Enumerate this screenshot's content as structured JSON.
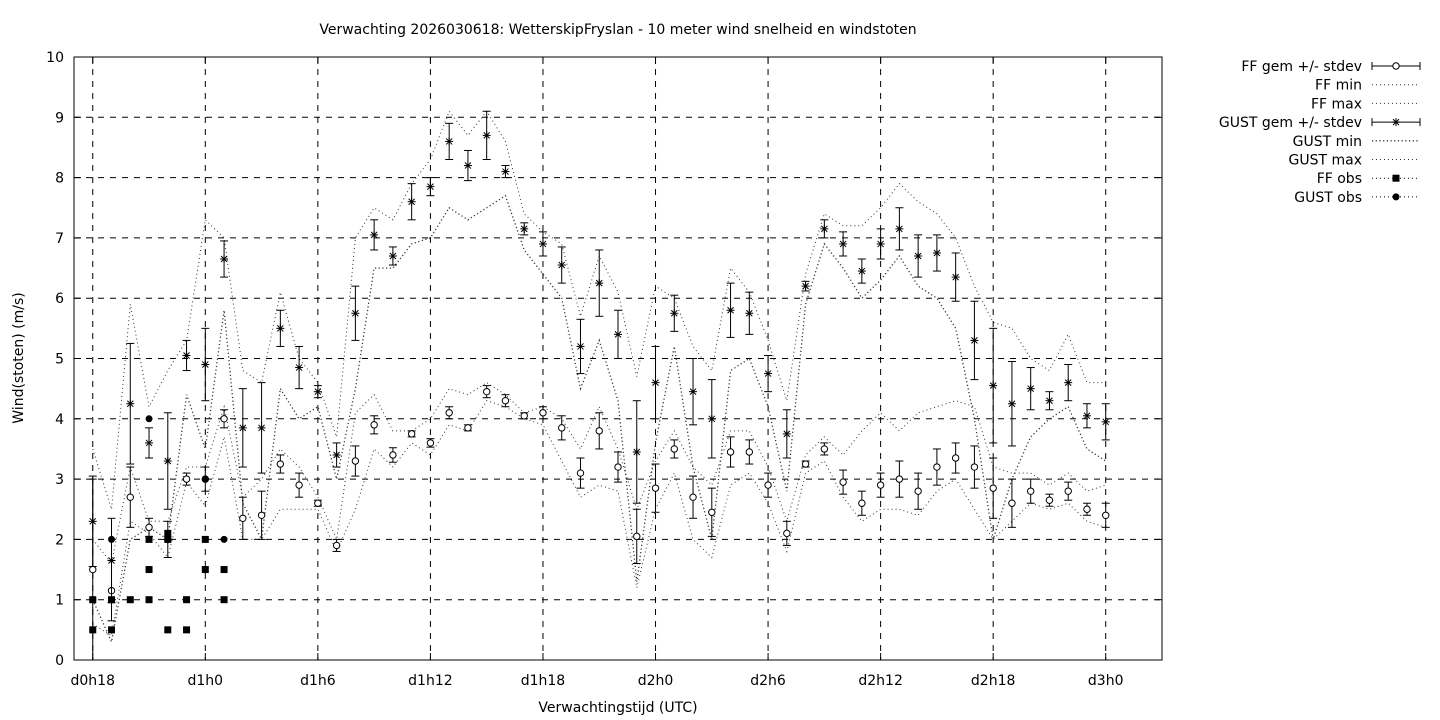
{
  "chart_data": {
    "type": "line",
    "title": "Verwachting 2026030618: WetterskipFryslan - 10 meter wind snelheid en windstoten",
    "xlabel": "Verwachtingstijd (UTC)",
    "ylabel": "Wind(stoten) (m/s)",
    "xlim": [
      -1,
      57
    ],
    "ylim": [
      0,
      10
    ],
    "yticks": [
      "0",
      "1",
      "2",
      "3",
      "4",
      "5",
      "6",
      "7",
      "8",
      "9",
      "10"
    ],
    "xticks": [
      {
        "x": 0,
        "label": "d0h18"
      },
      {
        "x": 6,
        "label": "d1h0"
      },
      {
        "x": 12,
        "label": "d1h6"
      },
      {
        "x": 18,
        "label": "d1h12"
      },
      {
        "x": 24,
        "label": "d1h18"
      },
      {
        "x": 30,
        "label": "d2h0"
      },
      {
        "x": 36,
        "label": "d2h6"
      },
      {
        "x": 42,
        "label": "d2h12"
      },
      {
        "x": 48,
        "label": "d2h18"
      },
      {
        "x": 54,
        "label": "d3h0"
      }
    ],
    "grid": true,
    "legend_position": "outside-right",
    "legend": [
      "FF gem +/- stdev",
      "FF min",
      "FF max",
      "GUST gem +/- stdev",
      "GUST min",
      "GUST max",
      "FF obs",
      "GUST obs"
    ],
    "x": [
      0,
      1,
      2,
      3,
      4,
      5,
      6,
      7,
      8,
      9,
      10,
      11,
      12,
      13,
      14,
      15,
      16,
      17,
      18,
      19,
      20,
      21,
      22,
      23,
      24,
      25,
      26,
      27,
      28,
      29,
      30,
      31,
      32,
      33,
      34,
      35,
      36,
      37,
      38,
      39,
      40,
      41,
      42,
      43,
      44,
      45,
      46,
      47,
      48,
      49,
      50,
      51,
      52,
      53,
      54
    ],
    "ff_mean": [
      1.5,
      1.15,
      2.7,
      2.2,
      2.0,
      3.0,
      3.0,
      4.0,
      2.35,
      2.4,
      3.25,
      2.9,
      2.6,
      1.9,
      3.3,
      3.9,
      3.4,
      3.75,
      3.6,
      4.1,
      3.85,
      4.45,
      4.3,
      4.05,
      4.1,
      3.85,
      3.1,
      3.8,
      3.2,
      2.05,
      2.85,
      3.5,
      2.7,
      2.45,
      3.45,
      3.45,
      2.9,
      2.1,
      3.25,
      3.5,
      2.95,
      2.6,
      2.9,
      3.0,
      2.8,
      3.2,
      3.35,
      3.2,
      2.85,
      2.6,
      2.8,
      2.65,
      2.8,
      2.5,
      2.4
    ],
    "ff_sd": [
      1.5,
      0.5,
      0.5,
      0.15,
      0.3,
      0.1,
      0.2,
      0.15,
      0.35,
      0.4,
      0.15,
      0.2,
      0.05,
      0.1,
      0.25,
      0.15,
      0.12,
      0.05,
      0.07,
      0.1,
      0.05,
      0.1,
      0.1,
      0.05,
      0.1,
      0.2,
      0.25,
      0.3,
      0.25,
      0.45,
      0.4,
      0.15,
      0.35,
      0.4,
      0.25,
      0.2,
      0.2,
      0.2,
      0.05,
      0.1,
      0.2,
      0.2,
      0.2,
      0.3,
      0.3,
      0.3,
      0.25,
      0.35,
      0.5,
      0.4,
      0.2,
      0.1,
      0.15,
      0.1,
      0.2
    ],
    "ff_min": [
      0.6,
      0.4,
      2.3,
      2.1,
      1.7,
      2.95,
      2.55,
      3.7,
      2.0,
      2.0,
      2.5,
      2.5,
      2.5,
      1.8,
      2.5,
      3.5,
      3.2,
      3.6,
      3.4,
      3.9,
      3.8,
      4.3,
      4.2,
      4.0,
      3.9,
      3.3,
      2.7,
      2.9,
      2.8,
      1.2,
      2.5,
      3.1,
      2.0,
      1.7,
      2.9,
      3.1,
      2.6,
      1.8,
      3.1,
      3.3,
      2.7,
      2.3,
      2.5,
      2.5,
      2.4,
      2.8,
      3.0,
      2.5,
      2.0,
      2.3,
      2.6,
      2.5,
      2.6,
      2.3,
      2.2
    ],
    "ff_max": [
      2.0,
      1.6,
      3.2,
      2.3,
      2.3,
      3.2,
      3.2,
      4.2,
      2.7,
      3.0,
      3.5,
      3.2,
      2.7,
      2.0,
      4.1,
      4.4,
      3.8,
      3.8,
      4.0,
      4.5,
      4.4,
      4.6,
      4.4,
      4.1,
      4.2,
      4.0,
      3.5,
      4.2,
      3.5,
      2.5,
      3.3,
      3.8,
      3.2,
      2.9,
      3.8,
      3.8,
      3.2,
      2.3,
      3.4,
      3.7,
      3.4,
      3.8,
      4.1,
      3.8,
      4.1,
      4.2,
      4.3,
      4.2,
      3.2,
      3.1,
      3.1,
      2.9,
      3.1,
      2.8,
      2.9
    ],
    "gust_mean": [
      2.3,
      1.65,
      4.25,
      3.6,
      3.3,
      5.05,
      4.9,
      6.65,
      3.85,
      3.85,
      5.5,
      4.85,
      4.45,
      3.4,
      5.75,
      7.05,
      6.7,
      7.6,
      7.85,
      8.6,
      8.2,
      8.7,
      8.1,
      7.15,
      6.9,
      6.55,
      5.2,
      6.25,
      5.4,
      3.45,
      4.6,
      5.75,
      4.45,
      4.0,
      5.8,
      5.75,
      4.75,
      3.75,
      6.2,
      7.15,
      6.9,
      6.45,
      6.9,
      7.15,
      6.7,
      6.75,
      6.35,
      5.3,
      4.55,
      4.25,
      4.5,
      4.3,
      4.6,
      4.05,
      3.95
    ],
    "gust_sd": [
      0.75,
      0.7,
      1.0,
      0.25,
      0.8,
      0.25,
      0.6,
      0.3,
      0.65,
      0.75,
      0.3,
      0.35,
      0.1,
      0.2,
      0.45,
      0.25,
      0.15,
      0.3,
      0.15,
      0.3,
      0.25,
      0.4,
      0.1,
      0.1,
      0.2,
      0.3,
      0.45,
      0.55,
      0.4,
      0.85,
      0.6,
      0.3,
      0.55,
      0.65,
      0.45,
      0.35,
      0.3,
      0.4,
      0.08,
      0.15,
      0.2,
      0.2,
      0.25,
      0.35,
      0.35,
      0.3,
      0.4,
      0.65,
      0.95,
      0.7,
      0.35,
      0.15,
      0.3,
      0.2,
      0.3
    ],
    "gust_min": [
      1.0,
      0.3,
      2.0,
      2.2,
      2.0,
      4.4,
      3.5,
      5.8,
      2.6,
      2.0,
      4.5,
      4.0,
      4.2,
      3.0,
      4.5,
      6.5,
      6.5,
      6.9,
      7.0,
      7.5,
      7.3,
      7.5,
      7.7,
      6.8,
      6.4,
      6.0,
      4.5,
      5.3,
      4.3,
      1.3,
      3.6,
      5.2,
      3.2,
      2.0,
      4.8,
      5.0,
      4.2,
      2.8,
      5.9,
      6.9,
      6.5,
      6.0,
      6.3,
      6.7,
      6.2,
      6.0,
      5.5,
      4.0,
      2.0,
      3.0,
      3.7,
      4.0,
      4.2,
      3.5,
      3.3
    ],
    "gust_max": [
      3.5,
      2.5,
      5.9,
      4.2,
      4.8,
      5.3,
      7.3,
      7.0,
      4.8,
      4.6,
      6.1,
      5.0,
      4.6,
      3.7,
      7.0,
      7.5,
      7.3,
      7.9,
      8.3,
      9.1,
      8.7,
      9.1,
      8.6,
      7.4,
      7.1,
      6.9,
      5.7,
      6.7,
      6.1,
      4.7,
      6.2,
      6.0,
      5.2,
      4.8,
      6.5,
      6.1,
      5.3,
      4.3,
      6.4,
      7.4,
      7.2,
      7.2,
      7.5,
      7.9,
      7.6,
      7.4,
      7.0,
      6.2,
      5.6,
      5.5,
      5.0,
      4.8,
      5.4,
      4.6,
      4.6
    ],
    "ff_obs": [
      [
        0,
        1.0
      ],
      [
        0,
        0.5
      ],
      [
        1,
        1.0
      ],
      [
        1,
        0.5
      ],
      [
        2,
        1.0
      ],
      [
        3,
        2.0
      ],
      [
        3,
        1.5
      ],
      [
        3,
        1.0
      ],
      [
        4,
        2.0
      ],
      [
        4,
        2.1
      ],
      [
        4,
        0.5
      ],
      [
        5,
        1.0
      ],
      [
        5,
        0.5
      ],
      [
        6,
        2.0
      ],
      [
        6,
        1.5
      ],
      [
        7,
        1.5
      ],
      [
        7,
        1.0
      ]
    ],
    "gust_obs": [
      [
        0,
        1.0
      ],
      [
        1,
        2.0
      ],
      [
        3,
        4.0
      ],
      [
        4,
        2.0
      ],
      [
        6,
        3.0
      ],
      [
        7,
        2.0
      ]
    ]
  }
}
